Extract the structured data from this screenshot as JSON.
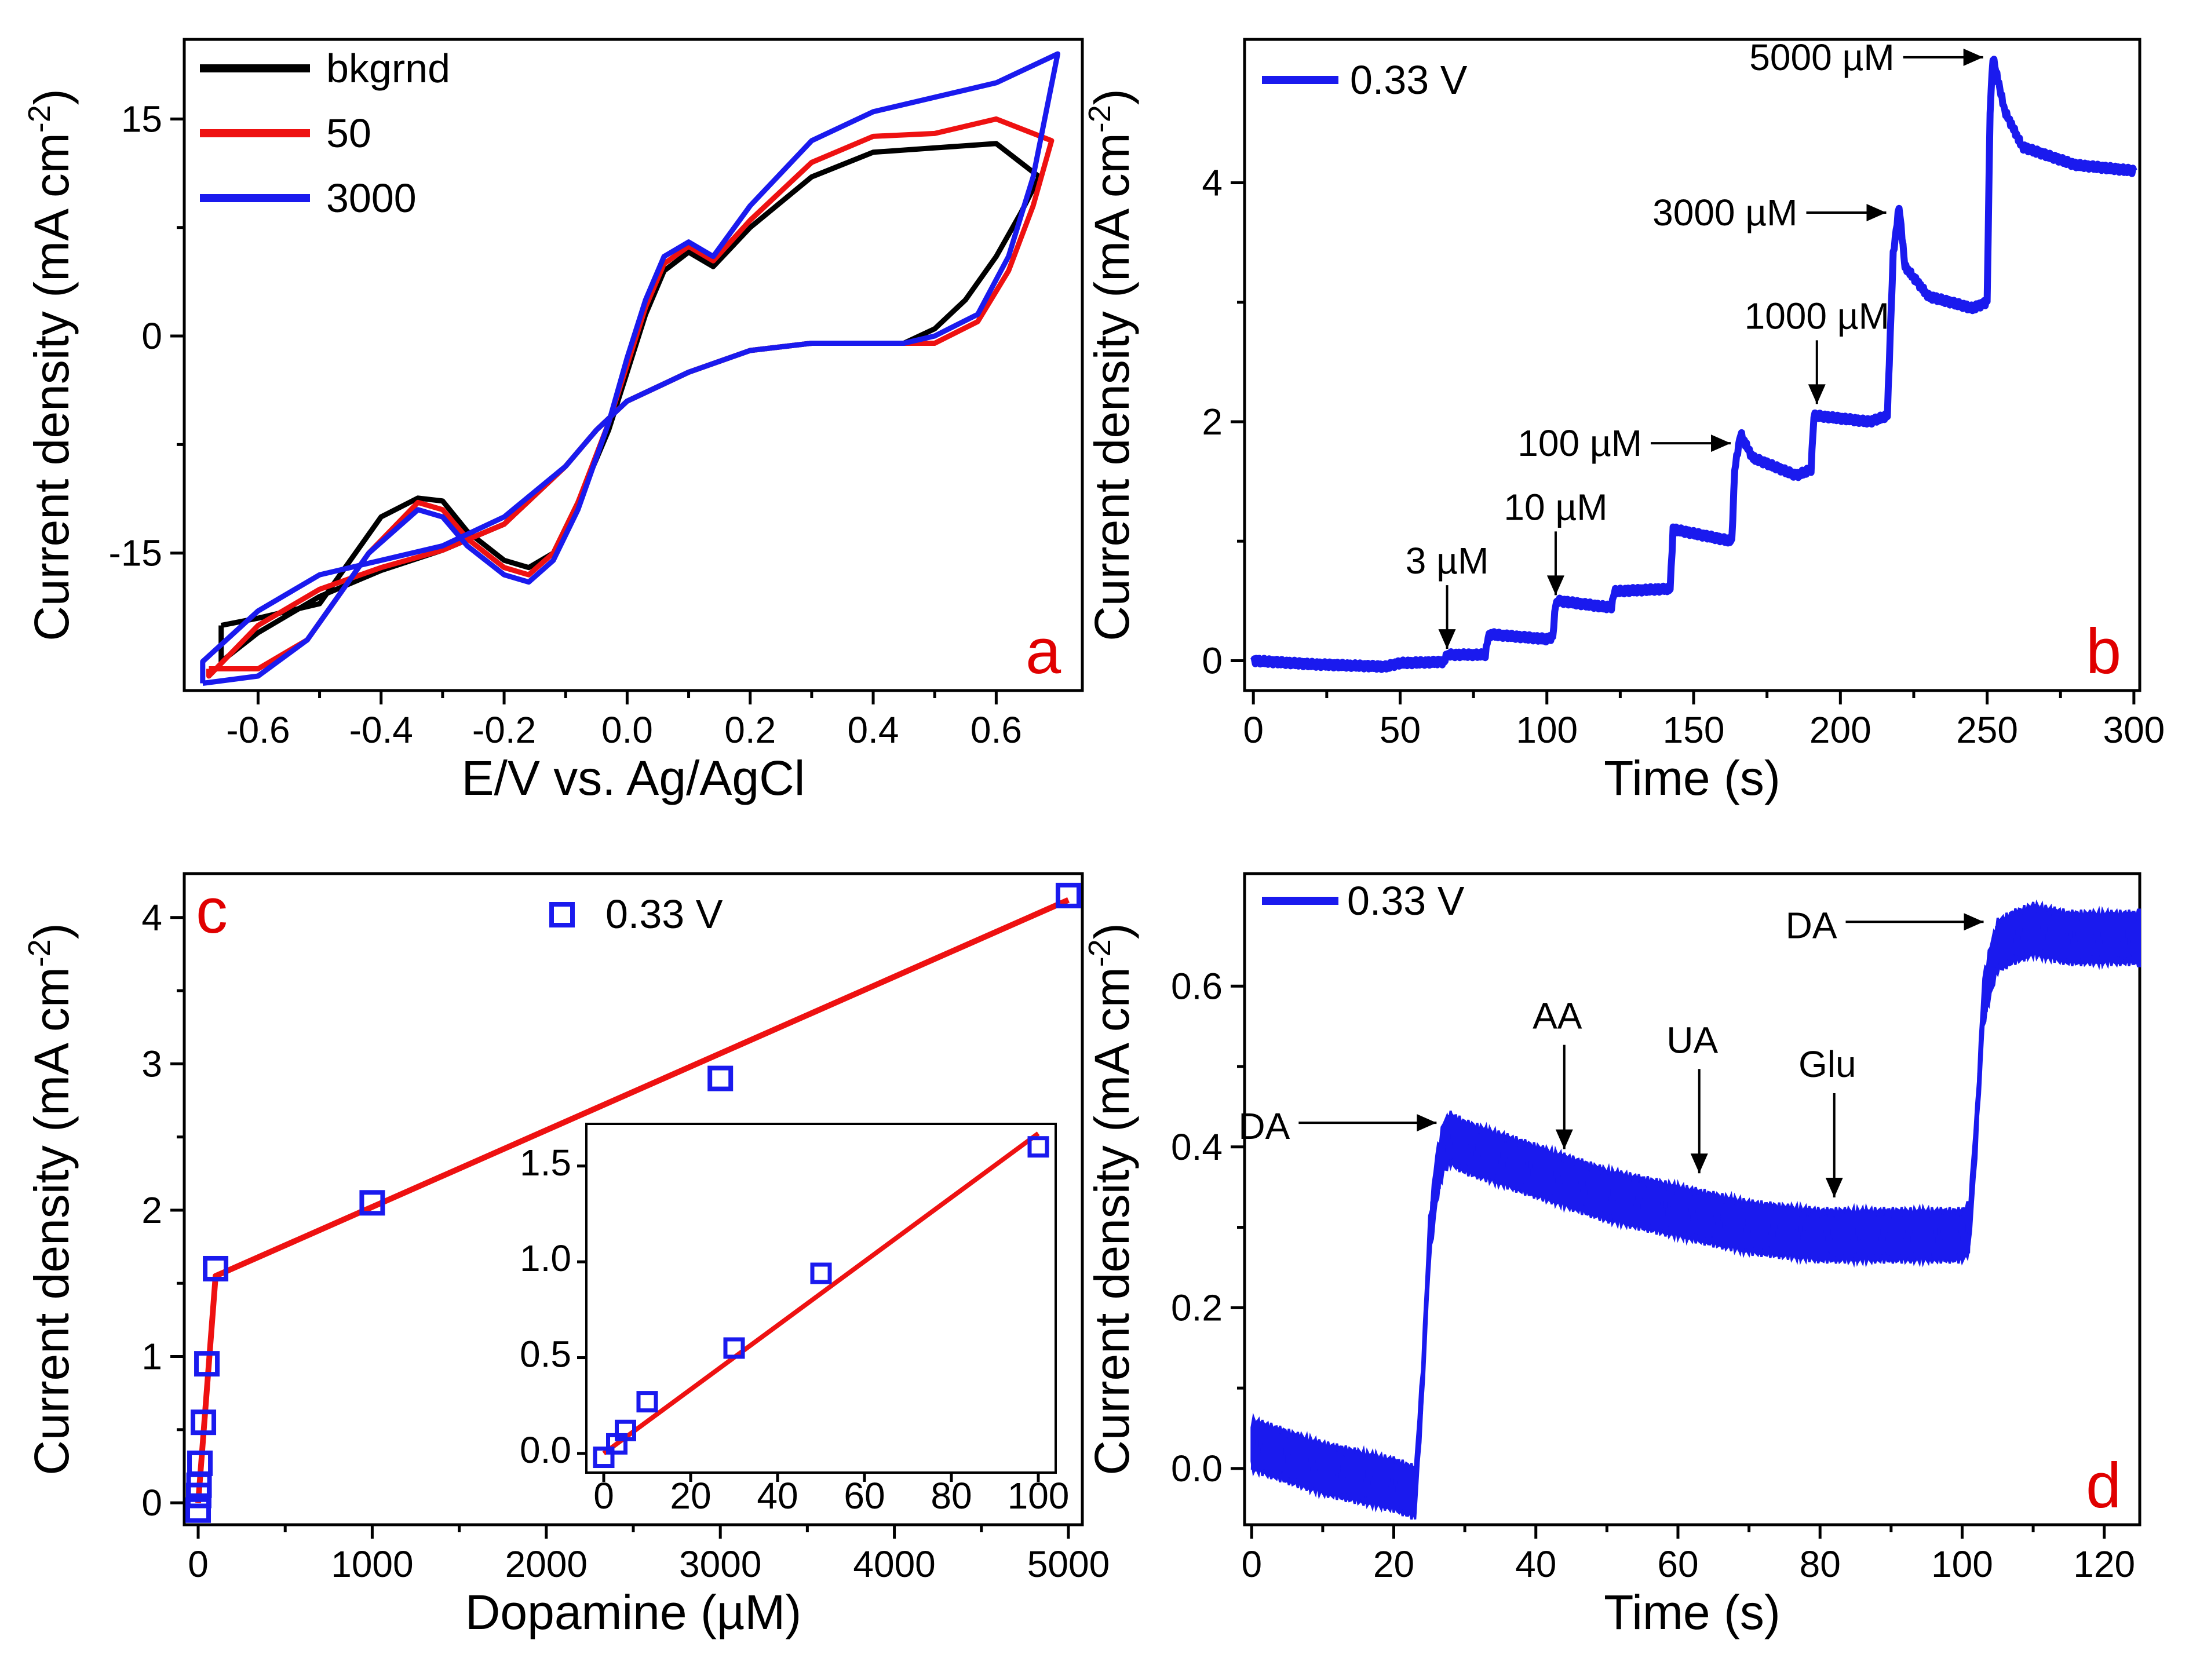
{
  "figure": {
    "colors": {
      "black": "#000000",
      "red": "#ee1111",
      "blue": "#1a1aee",
      "letter": "#e00000"
    }
  },
  "chart_data": [
    {
      "id": "a",
      "type": "line",
      "panel_label": "a",
      "xlabel": "E/V vs. Ag/AgCl",
      "ylabel": "Current density (mA cm",
      "ylabel_sup": "-2",
      "ylabel_close": ")",
      "xlim": [
        -0.72,
        0.74
      ],
      "ylim": [
        -24.5,
        20.5
      ],
      "xticks": [
        -0.6,
        -0.4,
        -0.2,
        0.0,
        0.2,
        0.4,
        0.6
      ],
      "xtick_labels": [
        "-0.6",
        "-0.4",
        "-0.2",
        "0.0",
        "0.2",
        "0.4",
        "0.6"
      ],
      "yticks": [
        -15,
        0,
        15
      ],
      "ytick_labels": [
        "-15",
        "0",
        "15"
      ],
      "legend": [
        "bkgrnd",
        "50",
        "3000"
      ],
      "series": [
        {
          "name": "bkgrnd",
          "color": "#000000",
          "x": [
            -0.66,
            -0.6,
            -0.5,
            -0.4,
            -0.34,
            -0.3,
            -0.26,
            -0.2,
            -0.16,
            -0.12,
            -0.08,
            -0.03,
            0.0,
            0.03,
            0.06,
            0.1,
            0.14,
            0.2,
            0.3,
            0.4,
            0.5,
            0.6,
            0.67,
            0.64,
            0.6,
            0.55,
            0.5,
            0.45,
            0.4,
            0.3,
            0.2,
            0.1,
            0.05,
            0.0,
            -0.05,
            -0.1,
            -0.2,
            -0.3,
            -0.4,
            -0.5,
            -0.6,
            -0.66,
            -0.66
          ],
          "y": [
            -20.0,
            -19.5,
            -18.5,
            -12.5,
            -11.2,
            -11.4,
            -13.5,
            -15.5,
            -16.0,
            -15.0,
            -11.5,
            -6.5,
            -2.5,
            1.5,
            4.5,
            5.8,
            4.8,
            7.5,
            11.0,
            12.7,
            13.0,
            13.3,
            11.0,
            8.5,
            5.5,
            2.5,
            0.5,
            -0.5,
            -0.5,
            -0.5,
            -1.0,
            -2.5,
            -3.5,
            -4.5,
            -6.5,
            -9.0,
            -13.0,
            -14.8,
            -16.2,
            -18.0,
            -20.5,
            -22.5,
            -20.0
          ]
        },
        {
          "name": "50",
          "color": "#ee1111",
          "x": [
            -0.68,
            -0.6,
            -0.52,
            -0.42,
            -0.34,
            -0.3,
            -0.26,
            -0.2,
            -0.16,
            -0.12,
            -0.08,
            -0.03,
            0.0,
            0.03,
            0.06,
            0.1,
            0.14,
            0.2,
            0.3,
            0.4,
            0.5,
            0.6,
            0.69,
            0.66,
            0.62,
            0.57,
            0.5,
            0.45,
            0.4,
            0.3,
            0.2,
            0.1,
            0.05,
            0.0,
            -0.05,
            -0.1,
            -0.2,
            -0.3,
            -0.4,
            -0.5,
            -0.6,
            -0.68,
            -0.68
          ],
          "y": [
            -23.0,
            -23.0,
            -21.0,
            -15.0,
            -11.5,
            -12.0,
            -14.0,
            -16.0,
            -16.5,
            -15.0,
            -11.5,
            -6.0,
            -2.0,
            2.0,
            5.0,
            6.2,
            5.2,
            8.0,
            12.0,
            13.8,
            14.0,
            15.0,
            13.5,
            9.0,
            4.5,
            1.0,
            -0.5,
            -0.5,
            -0.5,
            -0.5,
            -1.0,
            -2.5,
            -3.5,
            -4.5,
            -6.5,
            -9.0,
            -13.0,
            -14.8,
            -16.0,
            -17.5,
            -20.0,
            -23.5,
            -23.0
          ]
        },
        {
          "name": "3000",
          "color": "#1a1aee",
          "x": [
            -0.69,
            -0.6,
            -0.52,
            -0.42,
            -0.34,
            -0.3,
            -0.26,
            -0.2,
            -0.16,
            -0.12,
            -0.08,
            -0.03,
            0.0,
            0.03,
            0.06,
            0.1,
            0.14,
            0.2,
            0.3,
            0.4,
            0.5,
            0.6,
            0.7,
            0.66,
            0.62,
            0.57,
            0.5,
            0.45,
            0.4,
            0.3,
            0.2,
            0.1,
            0.05,
            0.0,
            -0.05,
            -0.1,
            -0.2,
            -0.3,
            -0.4,
            -0.5,
            -0.6,
            -0.69,
            -0.69
          ],
          "y": [
            -24.0,
            -23.5,
            -21.0,
            -15.0,
            -12.0,
            -12.5,
            -14.5,
            -16.5,
            -17.0,
            -15.5,
            -12.0,
            -6.0,
            -1.5,
            2.5,
            5.5,
            6.5,
            5.5,
            9.0,
            13.5,
            15.5,
            16.5,
            17.5,
            19.5,
            11.0,
            5.5,
            1.5,
            0.0,
            -0.5,
            -0.5,
            -0.5,
            -1.0,
            -2.5,
            -3.5,
            -4.5,
            -6.5,
            -9.0,
            -12.5,
            -14.5,
            -15.5,
            -16.5,
            -19.0,
            -22.5,
            -24.0
          ]
        }
      ]
    },
    {
      "id": "b",
      "type": "line",
      "panel_label": "b",
      "xlabel": "Time (s)",
      "ylabel": "Current density (mA cm",
      "ylabel_sup": "-2",
      "ylabel_close": ")",
      "xlim": [
        -3,
        302
      ],
      "ylim": [
        -0.25,
        5.2
      ],
      "xticks": [
        0,
        50,
        100,
        150,
        200,
        250,
        300
      ],
      "xtick_labels": [
        "0",
        "50",
        "100",
        "150",
        "200",
        "250",
        "300"
      ],
      "yticks": [
        0,
        2,
        4
      ],
      "ytick_labels": [
        "0",
        "2",
        "4"
      ],
      "legend": [
        "0.33 V"
      ],
      "series": [
        {
          "name": "0.33 V",
          "color": "#1a1aee",
          "x": [
            0,
            20,
            45,
            50,
            65,
            66,
            79,
            80,
            81,
            100,
            102,
            103,
            104,
            120,
            122,
            123,
            140,
            142,
            143,
            163,
            164,
            166,
            170,
            185,
            190,
            191,
            192,
            210,
            216,
            218,
            220,
            222,
            230,
            245,
            250,
            251,
            252,
            256,
            262,
            280,
            300
          ],
          "y": [
            0.0,
            -0.03,
            -0.05,
            -0.02,
            -0.01,
            0.05,
            0.05,
            0.2,
            0.22,
            0.18,
            0.2,
            0.48,
            0.5,
            0.45,
            0.45,
            0.58,
            0.6,
            0.6,
            1.1,
            1.0,
            1.6,
            1.9,
            1.7,
            1.55,
            1.6,
            2.05,
            2.05,
            2.0,
            2.05,
            3.4,
            3.8,
            3.3,
            3.05,
            2.95,
            3.0,
            4.6,
            5.05,
            4.6,
            4.3,
            4.15,
            4.1
          ]
        }
      ],
      "annotations": [
        {
          "text": "3 µM",
          "direction": "down",
          "x": 66,
          "y": 0.05
        },
        {
          "text": "10 µM",
          "direction": "down",
          "x": 103,
          "y": 0.5
        },
        {
          "text": "100 µM",
          "direction": "right",
          "x": 165,
          "y": 1.82
        },
        {
          "text": "1000 µM",
          "direction": "down",
          "x": 192,
          "y": 2.1
        },
        {
          "text": "3000 µM",
          "direction": "right",
          "x": 218,
          "y": 3.75
        },
        {
          "text": "5000 µM",
          "direction": "right",
          "x": 251,
          "y": 5.05
        }
      ]
    },
    {
      "id": "c",
      "type": "scatter",
      "panel_label": "c",
      "xlabel": "Dopamine (µM)",
      "ylabel": "Current density (mA cm",
      "ylabel_sup": "-2",
      "ylabel_close": ")",
      "xlim": [
        -80,
        5080
      ],
      "ylim": [
        -0.15,
        4.3
      ],
      "xticks": [
        0,
        1000,
        2000,
        3000,
        4000,
        5000
      ],
      "xtick_labels": [
        "0",
        "1000",
        "2000",
        "3000",
        "4000",
        "5000"
      ],
      "yticks": [
        0,
        1,
        2,
        3,
        4
      ],
      "ytick_labels": [
        "0",
        "1",
        "2",
        "3",
        "4"
      ],
      "legend": [
        "0.33 V"
      ],
      "points": {
        "x": [
          0,
          3,
          5,
          10,
          30,
          50,
          100,
          1000,
          3000,
          5000
        ],
        "y": [
          -0.05,
          0.05,
          0.12,
          0.27,
          0.55,
          0.95,
          1.6,
          2.05,
          2.9,
          4.15
        ]
      },
      "fit_line": {
        "x": [
          0,
          100,
          5000
        ],
        "y": [
          0.0,
          1.55,
          4.12
        ]
      },
      "inset": {
        "xlim": [
          -4,
          104
        ],
        "ylim": [
          -0.1,
          1.72
        ],
        "xticks": [
          0,
          20,
          40,
          60,
          80,
          100
        ],
        "xtick_labels": [
          "0",
          "20",
          "40",
          "60",
          "80",
          "100"
        ],
        "yticks": [
          0.0,
          0.5,
          1.0,
          1.5
        ],
        "ytick_labels": [
          "0.0",
          "0.5",
          "1.0",
          "1.5"
        ],
        "points": {
          "x": [
            0,
            3,
            5,
            10,
            30,
            50,
            100
          ],
          "y": [
            -0.02,
            0.05,
            0.12,
            0.27,
            0.55,
            0.94,
            1.6
          ]
        },
        "fit_line": {
          "x": [
            0,
            100
          ],
          "y": [
            0.0,
            1.67
          ]
        }
      }
    },
    {
      "id": "d",
      "type": "line",
      "panel_label": "d",
      "xlabel": "Time (s)",
      "ylabel": "Current density (mA cm",
      "ylabel_sup": "-2",
      "ylabel_close": ")",
      "xlim": [
        -1,
        125
      ],
      "ylim": [
        -0.07,
        0.74
      ],
      "xticks": [
        0,
        20,
        40,
        60,
        80,
        100,
        120
      ],
      "xtick_labels": [
        "0",
        "20",
        "40",
        "60",
        "80",
        "100",
        "120"
      ],
      "yticks": [
        0.0,
        0.2,
        0.4,
        0.6
      ],
      "ytick_labels": [
        "0.0",
        "0.2",
        "0.4",
        "0.6"
      ],
      "legend": [
        "0.33 V"
      ],
      "series": [
        {
          "name": "0.33 V",
          "color": "#1a1aee",
          "noise_band": 0.035,
          "x": [
            0,
            10,
            20,
            23,
            24,
            25,
            26,
            27,
            28,
            30,
            40,
            50,
            60,
            70,
            80,
            90,
            100,
            101,
            102,
            103,
            104,
            105,
            107,
            110,
            115,
            120,
            125
          ],
          "y": [
            0.03,
            0.0,
            -0.02,
            -0.03,
            0.1,
            0.28,
            0.36,
            0.4,
            0.41,
            0.4,
            0.37,
            0.34,
            0.32,
            0.3,
            0.29,
            0.29,
            0.29,
            0.3,
            0.42,
            0.58,
            0.62,
            0.65,
            0.66,
            0.67,
            0.66,
            0.66,
            0.66
          ]
        }
      ],
      "annotations": [
        {
          "text": "DA",
          "color": "#1a1aee",
          "direction": "right",
          "x": 27,
          "y": 0.43
        },
        {
          "text": "AA",
          "color": "#000000",
          "direction": "down",
          "x": 44,
          "y": 0.39
        },
        {
          "text": "UA",
          "color": "#000000",
          "direction": "down",
          "x": 63,
          "y": 0.36
        },
        {
          "text": "Glu",
          "color": "#000000",
          "direction": "down",
          "x": 82,
          "y": 0.33
        },
        {
          "text": "DA",
          "color": "#1a1aee",
          "direction": "right",
          "x": 104,
          "y": 0.68
        }
      ]
    }
  ]
}
